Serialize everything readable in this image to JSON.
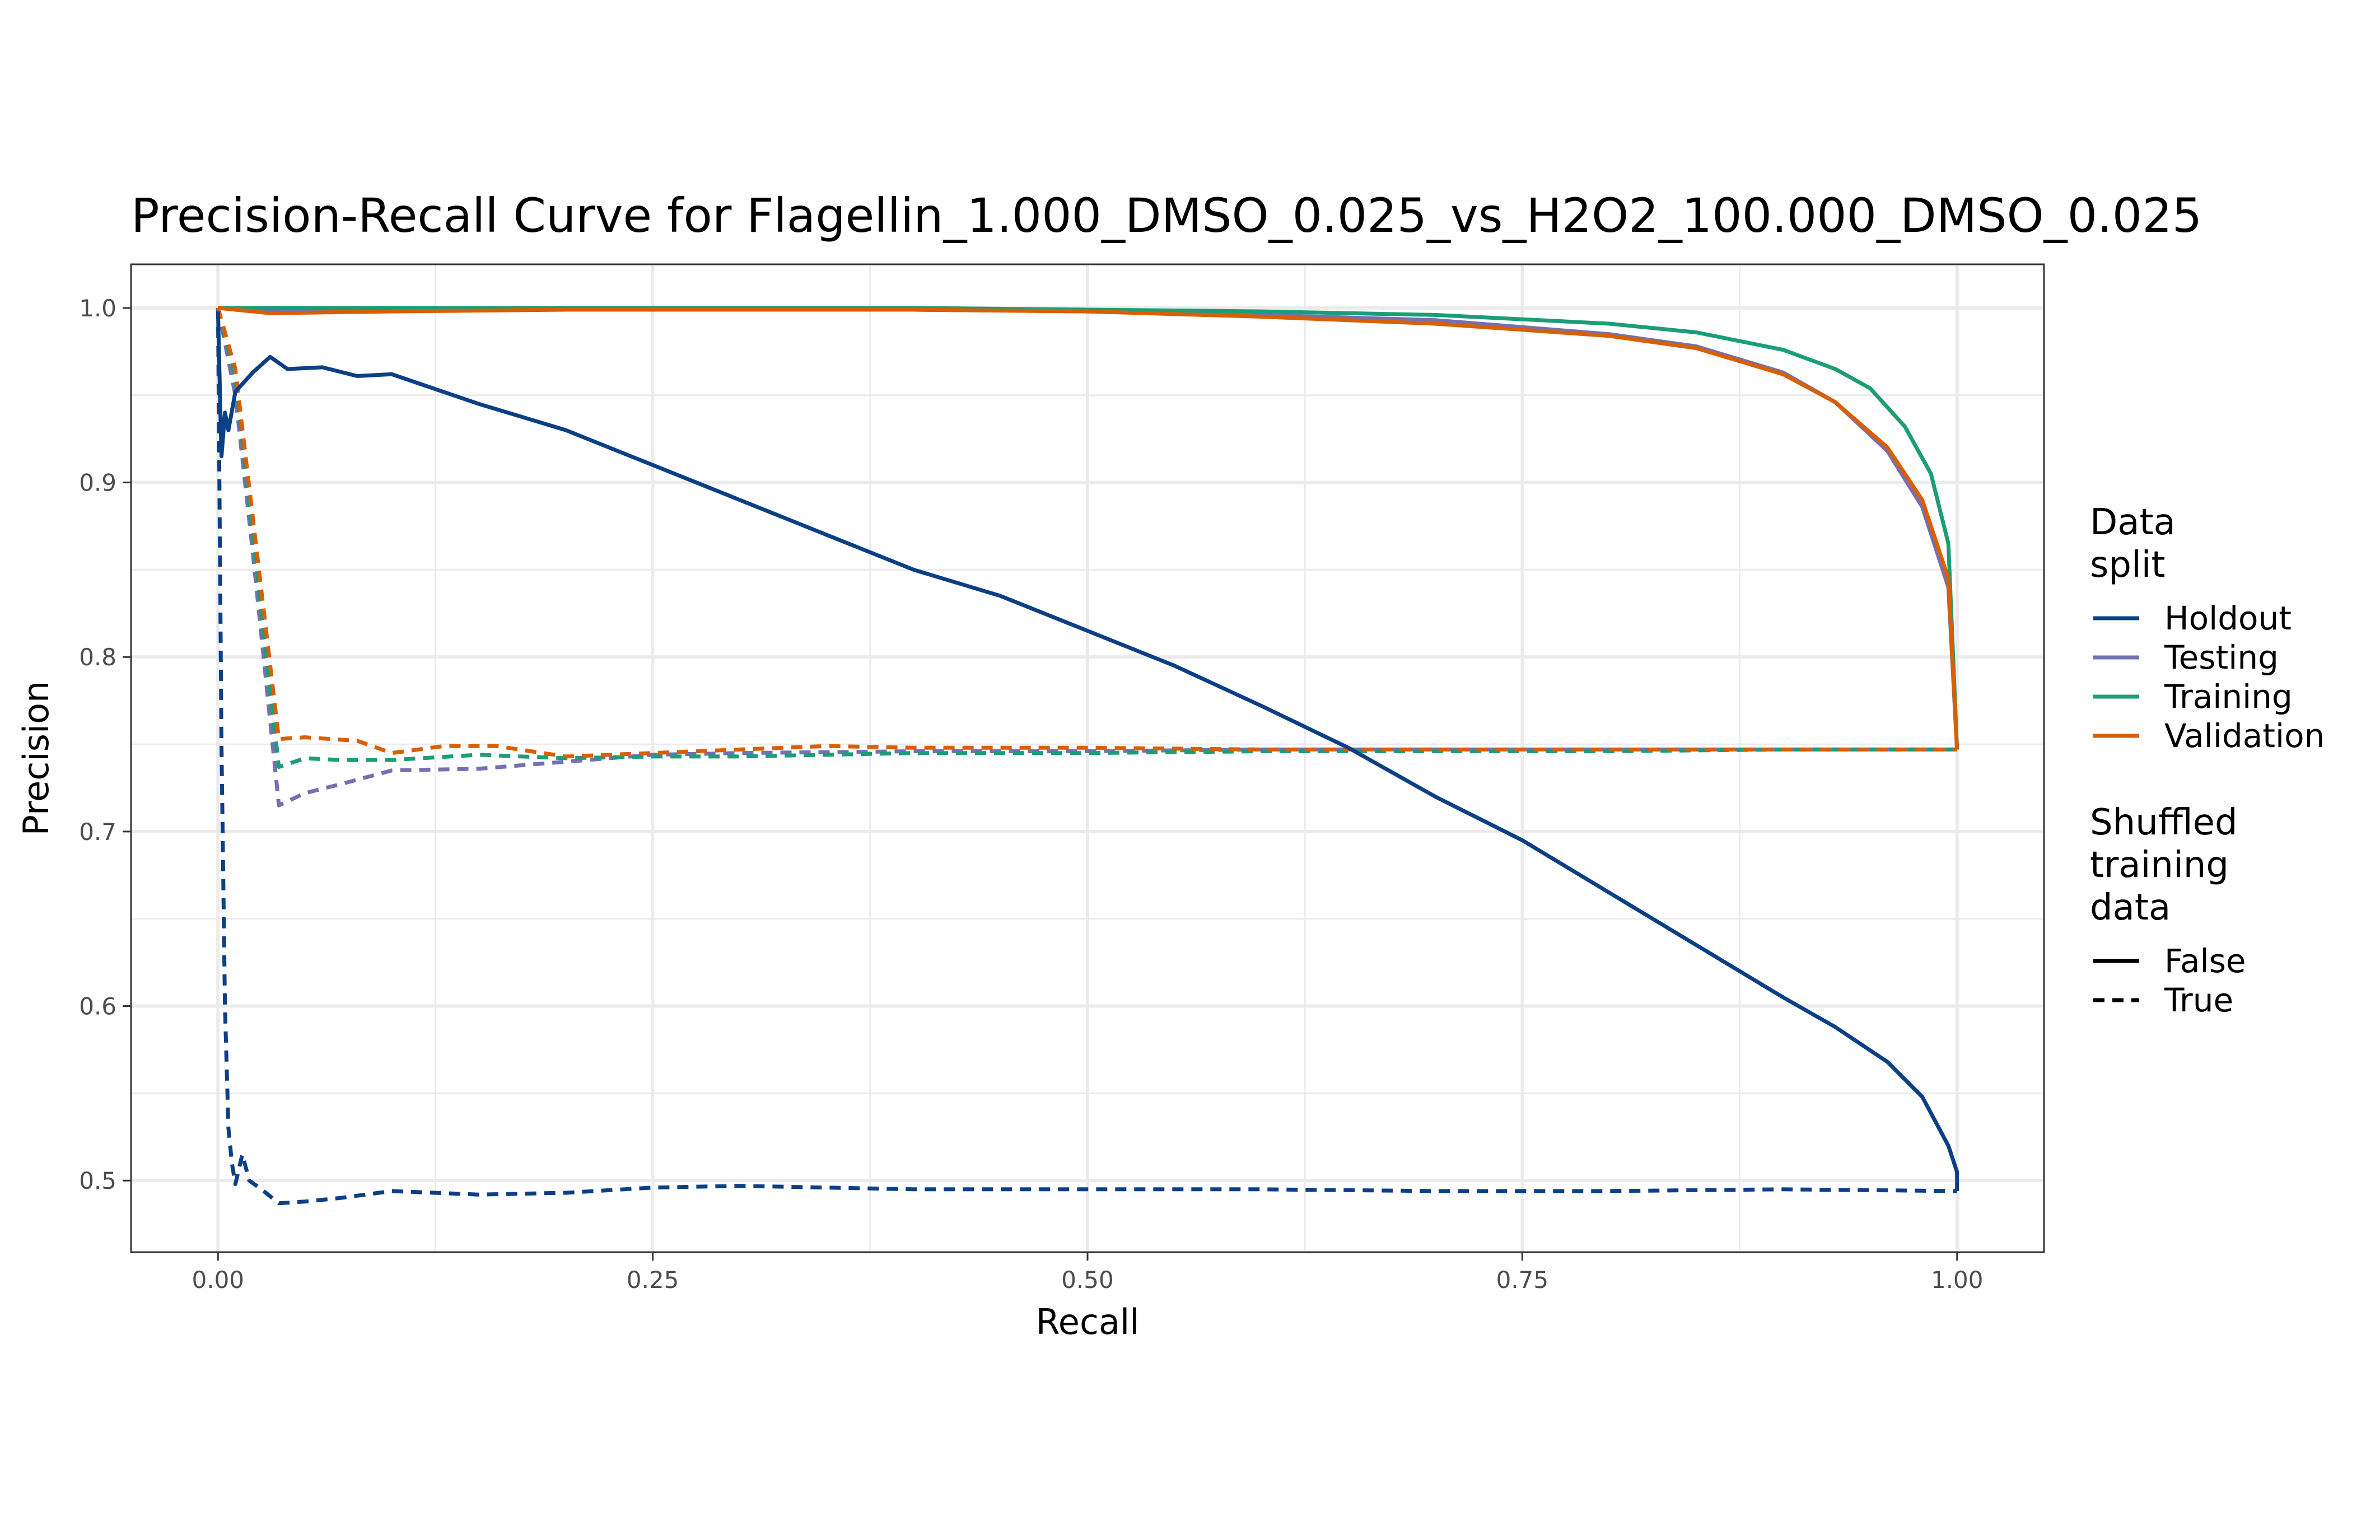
{
  "chart_data": {
    "type": "line",
    "title": "Precision-Recall Curve for Flagellin_1.000_DMSO_0.025_vs_H2O2_100.000_DMSO_0.025",
    "xlabel": "Recall",
    "ylabel": "Precision",
    "xlim": [
      -0.05,
      1.05
    ],
    "ylim": [
      0.459,
      1.025
    ],
    "x_ticks": [
      "0.00",
      "0.25",
      "0.50",
      "0.75",
      "1.00"
    ],
    "y_ticks": [
      "0.5",
      "0.6",
      "0.7",
      "0.8",
      "0.9",
      "1.0"
    ],
    "grid": true,
    "legend_position": "right",
    "colors": {
      "Holdout": "#0b3f86",
      "Testing": "#7570b3",
      "Training": "#1b9e77",
      "Validation": "#d95f02"
    },
    "legend": {
      "color_title": "Data\nsplit",
      "color_entries": [
        "Holdout",
        "Testing",
        "Training",
        "Validation"
      ],
      "linetype_title": "Shuffled\ntraining\ndata",
      "linetype_entries": [
        "False",
        "True"
      ]
    },
    "series": [
      {
        "name": "Holdout",
        "shuffled": "False",
        "x": [
          0,
          0.002,
          0.004,
          0.006,
          0.01,
          0.02,
          0.03,
          0.04,
          0.06,
          0.08,
          0.1,
          0.15,
          0.2,
          0.25,
          0.3,
          0.35,
          0.4,
          0.45,
          0.5,
          0.55,
          0.6,
          0.65,
          0.7,
          0.75,
          0.8,
          0.85,
          0.9,
          0.93,
          0.96,
          0.98,
          0.995,
          1.0,
          1.0
        ],
        "y": [
          0.998,
          0.915,
          0.94,
          0.93,
          0.952,
          0.963,
          0.972,
          0.965,
          0.966,
          0.961,
          0.962,
          0.945,
          0.93,
          0.91,
          0.89,
          0.87,
          0.85,
          0.835,
          0.815,
          0.795,
          0.772,
          0.748,
          0.72,
          0.695,
          0.665,
          0.635,
          0.605,
          0.588,
          0.568,
          0.548,
          0.52,
          0.505,
          0.494
        ]
      },
      {
        "name": "Testing",
        "shuffled": "False",
        "x": [
          0,
          0.03,
          0.1,
          0.2,
          0.3,
          0.4,
          0.5,
          0.6,
          0.7,
          0.8,
          0.85,
          0.9,
          0.93,
          0.96,
          0.98,
          0.995,
          1.0
        ],
        "y": [
          1.0,
          0.998,
          0.999,
          0.999,
          0.999,
          0.999,
          0.998,
          0.996,
          0.993,
          0.985,
          0.978,
          0.963,
          0.946,
          0.918,
          0.886,
          0.84,
          0.747
        ]
      },
      {
        "name": "Training",
        "shuffled": "False",
        "x": [
          0,
          0.1,
          0.2,
          0.3,
          0.4,
          0.5,
          0.6,
          0.7,
          0.8,
          0.85,
          0.9,
          0.93,
          0.95,
          0.97,
          0.985,
          0.995,
          1.0
        ],
        "y": [
          1.0,
          1.0,
          1.0,
          1.0,
          1.0,
          0.999,
          0.998,
          0.996,
          0.991,
          0.986,
          0.976,
          0.965,
          0.954,
          0.932,
          0.905,
          0.865,
          0.747
        ]
      },
      {
        "name": "Validation",
        "shuffled": "False",
        "x": [
          0,
          0.03,
          0.1,
          0.2,
          0.3,
          0.4,
          0.5,
          0.6,
          0.7,
          0.8,
          0.85,
          0.9,
          0.93,
          0.96,
          0.98,
          0.995,
          1.0
        ],
        "y": [
          1.0,
          0.997,
          0.998,
          0.999,
          0.999,
          0.999,
          0.998,
          0.995,
          0.991,
          0.984,
          0.977,
          0.962,
          0.946,
          0.92,
          0.89,
          0.845,
          0.747
        ]
      },
      {
        "name": "Holdout",
        "shuffled": "True",
        "x": [
          0,
          0.002,
          0.004,
          0.006,
          0.008,
          0.01,
          0.014,
          0.018,
          0.025,
          0.035,
          0.05,
          0.07,
          0.1,
          0.15,
          0.2,
          0.25,
          0.3,
          0.35,
          0.4,
          0.5,
          0.6,
          0.7,
          0.8,
          0.9,
          1.0
        ],
        "y": [
          1.0,
          0.75,
          0.6,
          0.53,
          0.51,
          0.498,
          0.515,
          0.5,
          0.495,
          0.487,
          0.488,
          0.49,
          0.494,
          0.492,
          0.493,
          0.496,
          0.497,
          0.496,
          0.495,
          0.495,
          0.495,
          0.494,
          0.494,
          0.495,
          0.494
        ]
      },
      {
        "name": "Testing",
        "shuffled": "True",
        "x": [
          0,
          0.01,
          0.02,
          0.035,
          0.05,
          0.07,
          0.1,
          0.15,
          0.2,
          0.25,
          0.3,
          0.4,
          0.5,
          0.6,
          0.7,
          0.8,
          0.9,
          1.0
        ],
        "y": [
          1.0,
          0.95,
          0.86,
          0.715,
          0.722,
          0.727,
          0.735,
          0.736,
          0.74,
          0.744,
          0.745,
          0.746,
          0.746,
          0.747,
          0.747,
          0.747,
          0.747,
          0.747
        ]
      },
      {
        "name": "Training",
        "shuffled": "True",
        "x": [
          0,
          0.01,
          0.02,
          0.035,
          0.05,
          0.07,
          0.1,
          0.15,
          0.2,
          0.25,
          0.3,
          0.4,
          0.5,
          0.6,
          0.7,
          0.8,
          0.9,
          1.0
        ],
        "y": [
          1.0,
          0.96,
          0.87,
          0.737,
          0.742,
          0.741,
          0.741,
          0.744,
          0.742,
          0.743,
          0.743,
          0.745,
          0.745,
          0.746,
          0.746,
          0.746,
          0.747,
          0.747
        ]
      },
      {
        "name": "Validation",
        "shuffled": "True",
        "x": [
          0,
          0.01,
          0.02,
          0.035,
          0.05,
          0.08,
          0.1,
          0.13,
          0.16,
          0.2,
          0.25,
          0.3,
          0.35,
          0.4,
          0.5,
          0.6,
          0.7,
          0.8,
          0.9,
          1.0
        ],
        "y": [
          1.0,
          0.965,
          0.88,
          0.753,
          0.754,
          0.752,
          0.745,
          0.749,
          0.749,
          0.743,
          0.745,
          0.747,
          0.749,
          0.748,
          0.748,
          0.747,
          0.747,
          0.747,
          0.747,
          0.747
        ]
      }
    ]
  }
}
